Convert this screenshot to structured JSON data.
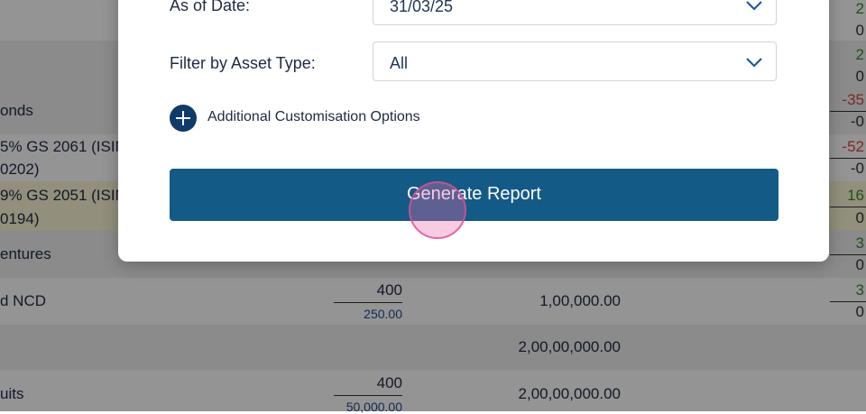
{
  "background_table": {
    "rows": [
      {
        "label": "onds",
        "right_top": "-35",
        "right_bottom": "-0"
      },
      {
        "label_line1": "5% GS 2061 (ISIN",
        "label_line2": "0202)",
        "right_top": "-52",
        "right_bottom": "-0"
      },
      {
        "label_line1": "9% GS 2051 (ISIN",
        "label_line2": "0194)",
        "right_top": "16",
        "right_bottom": "0"
      },
      {
        "label": "entures",
        "right_top": "3",
        "right_bottom": "0"
      },
      {
        "label": "d NCD",
        "qty": "400",
        "qty_sub": "250.00",
        "amount": "1,00,000.00",
        "right_top": "3",
        "right_bottom": "0"
      },
      {
        "amount": "2,00,00,000.00"
      },
      {
        "label": "uits",
        "qty": "400",
        "qty_sub": "50,000.00",
        "amount": "2,00,00,000.00"
      }
    ],
    "top_right_values": [
      "2",
      "0",
      "2",
      "0"
    ]
  },
  "modal": {
    "as_of_date_label": "As of Date:",
    "as_of_date_value": "31/03/25",
    "asset_type_label": "Filter by Asset Type:",
    "asset_type_value": "All",
    "customisation_label": "Additional Customisation Options",
    "generate_button_label": "Generate Report"
  },
  "colors": {
    "button": "#145a87",
    "plus_icon": "#113a6b",
    "click_indicator": "#e86ea6"
  }
}
